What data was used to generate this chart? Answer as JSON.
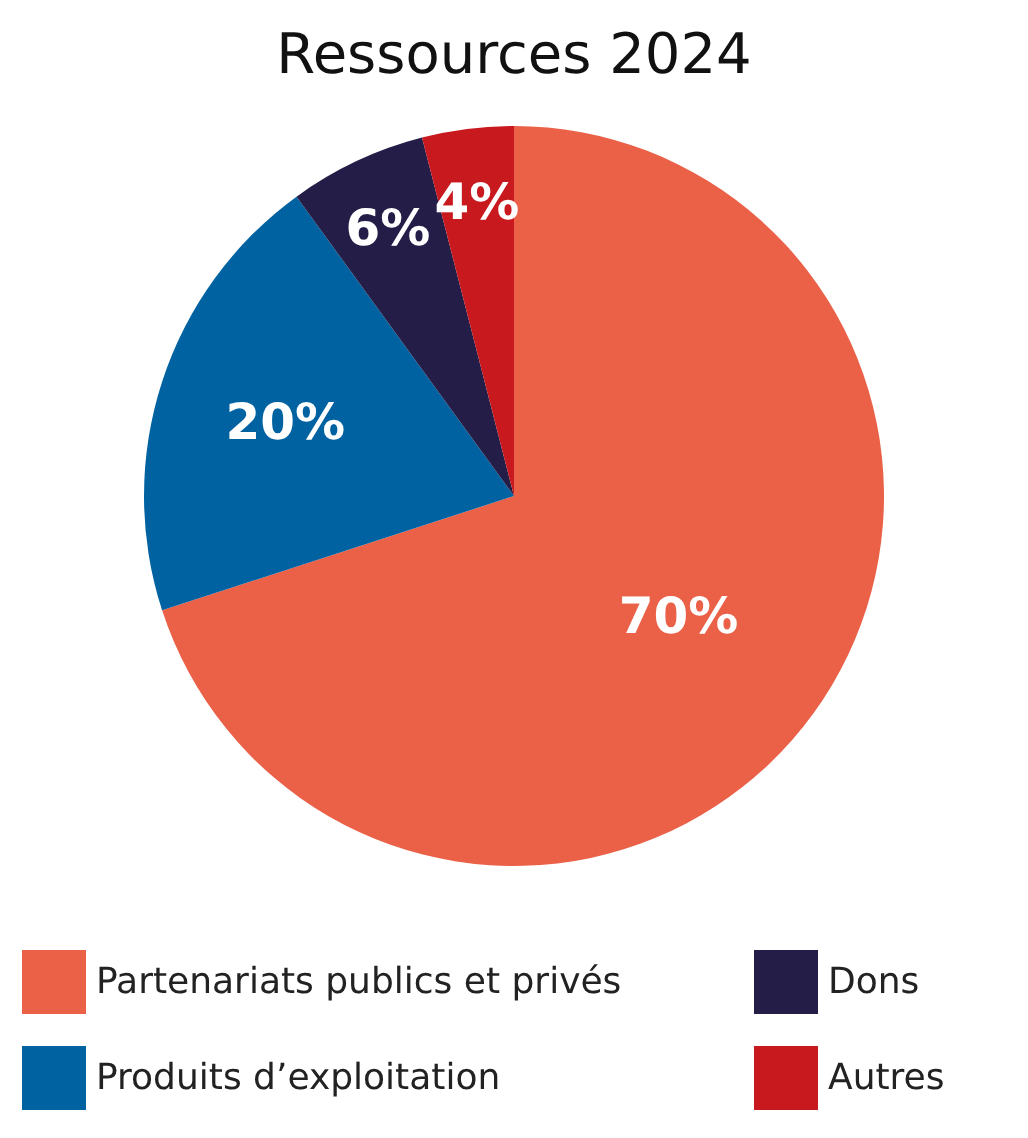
{
  "chart_data": {
    "type": "pie",
    "title": "Ressources 2024",
    "categories": [
      "Partenariats publics et privés",
      "Produits d’exploitation",
      "Dons",
      "Autres"
    ],
    "values": [
      70,
      20,
      6,
      4
    ],
    "colors": [
      "#ea6148",
      "#0062a0",
      "#231d47",
      "#c8191f"
    ],
    "value_labels": [
      "70%",
      "20%",
      "6%",
      "4%"
    ],
    "legend": "bottom"
  }
}
